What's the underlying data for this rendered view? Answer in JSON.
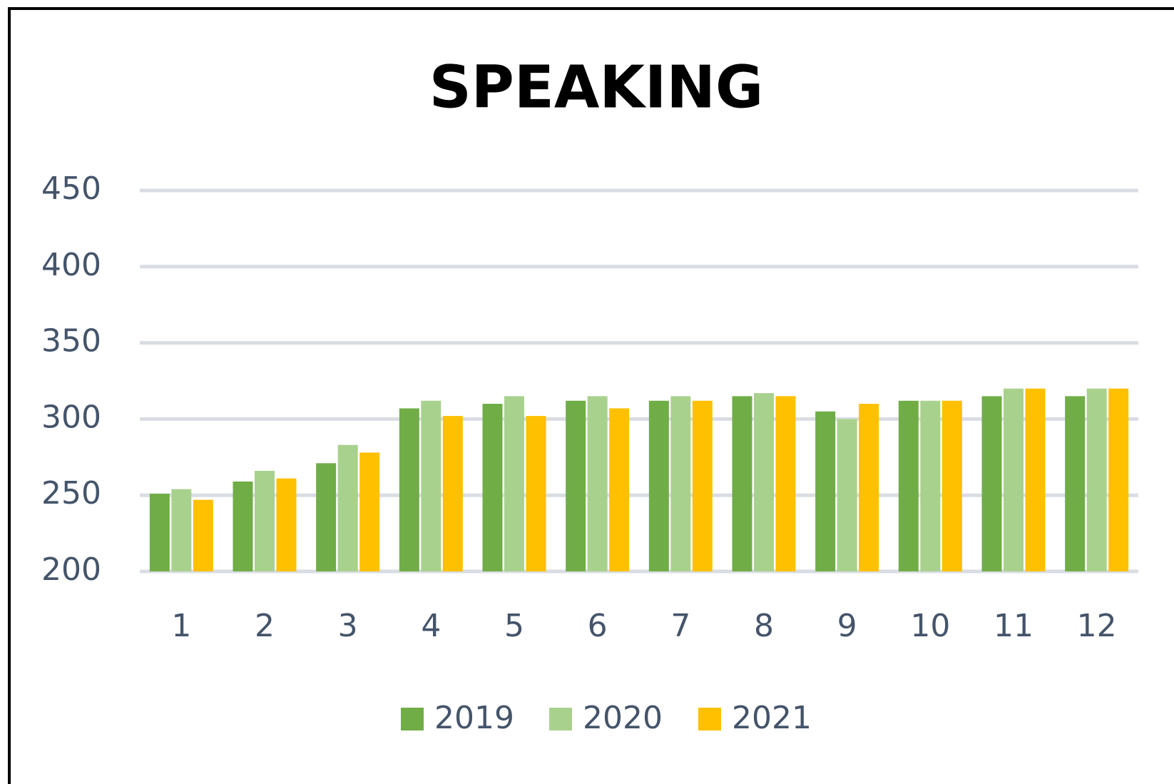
{
  "chart_data": {
    "type": "bar",
    "title": "SPEAKING",
    "categories": [
      "1",
      "2",
      "3",
      "4",
      "5",
      "6",
      "7",
      "8",
      "9",
      "10",
      "11",
      "12"
    ],
    "series": [
      {
        "name": "2019",
        "color": "#70ad47",
        "values": [
          251,
          259,
          271,
          307,
          310,
          312,
          312,
          315,
          305,
          312,
          315,
          315
        ]
      },
      {
        "name": "2020",
        "color": "#a9d18e",
        "values": [
          254,
          266,
          283,
          312,
          315,
          315,
          315,
          317,
          300,
          312,
          320,
          320
        ]
      },
      {
        "name": "2021",
        "color": "#ffc000",
        "values": [
          247,
          261,
          278,
          302,
          302,
          307,
          312,
          315,
          310,
          312,
          320,
          320
        ]
      }
    ],
    "ylim": [
      200,
      450
    ],
    "yticks": [
      200,
      250,
      300,
      350,
      400,
      450
    ],
    "grid": true,
    "legend": "bottom"
  }
}
